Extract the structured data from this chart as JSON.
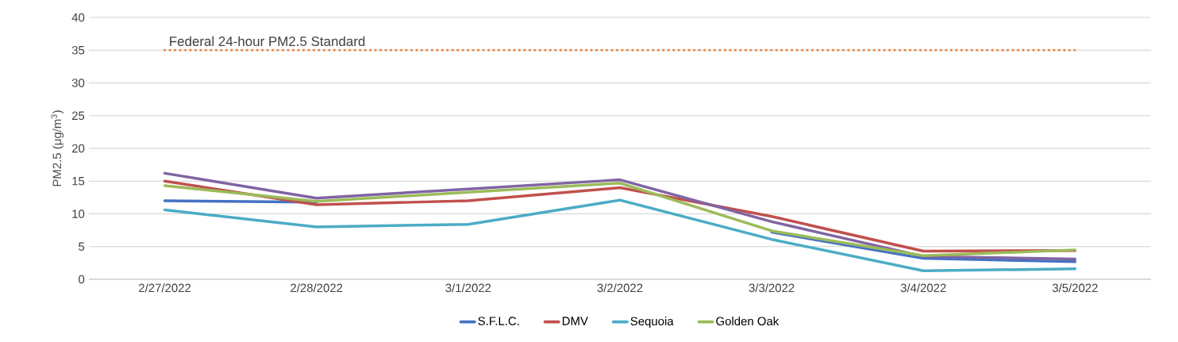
{
  "chart_data": {
    "type": "line",
    "ylabel": "PM2.5 (μg/m$^{3}$)",
    "categories": [
      "2/27/2022",
      "2/28/2022",
      "3/1/2022",
      "3/2/2022",
      "3/3/2022",
      "3/4/2022",
      "3/5/2022"
    ],
    "series": [
      {
        "name": "S.F.L.C.",
        "color": "#4472c4",
        "values": [
          12,
          11.8,
          null,
          null,
          7.2,
          3.2,
          2.7
        ]
      },
      {
        "name": "DMV",
        "color": "#c0504d",
        "values": [
          15,
          11.4,
          12,
          14,
          9.6,
          4.3,
          4.4
        ]
      },
      {
        "color": "#8064a2",
        "values": [
          16.2,
          12.4,
          13.8,
          15.2,
          8.8,
          3.5,
          3.1
        ]
      },
      {
        "name": "Sequoia",
        "color": "#4bacc6",
        "values": [
          10.6,
          8,
          8.4,
          12.1,
          6.1,
          1.3,
          1.6
        ]
      },
      {
        "name": "Golden Oak",
        "color": "#9bbb59",
        "values": [
          14.3,
          11.9,
          13.3,
          14.7,
          7.4,
          3.6,
          4.5
        ]
      }
    ],
    "ylim": [
      0,
      40
    ],
    "yticks": [
      0,
      5,
      10,
      15,
      20,
      25,
      30,
      35,
      40
    ],
    "grid": "y",
    "legend": "bottom",
    "ref_lines": [
      {
        "axis": "y",
        "value": 35,
        "label": "Federal 24-hour PM2.5 Standard",
        "color": "#ed7d31",
        "line_style": "dotted"
      }
    ]
  }
}
